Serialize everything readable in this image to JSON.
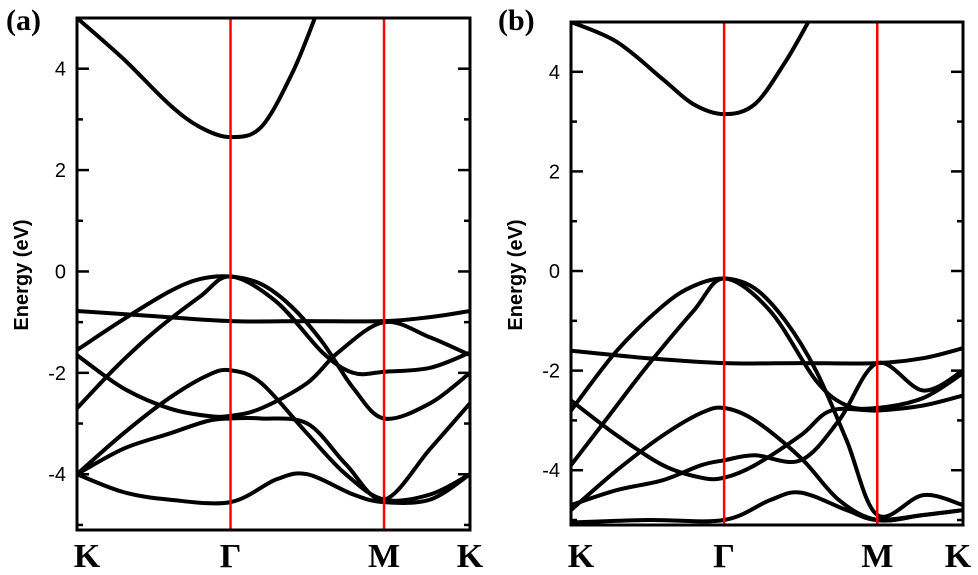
{
  "chart_data": [
    {
      "type": "line",
      "panel_label": "(a)",
      "ylabel": "Energy (eV)",
      "ylim": [
        -5.1,
        5.0
      ],
      "yticks": [
        4,
        2,
        0,
        -2,
        -4
      ],
      "ytick_labels": [
        "4",
        "2",
        "0",
        "-2",
        "-4"
      ],
      "kpoint_labels": [
        "K",
        "Γ",
        "M",
        "K"
      ],
      "kpoint_x": [
        0,
        1,
        2,
        2.56
      ],
      "vertical_line_color": "#ff0000",
      "band_color": "#000000",
      "bands": [
        {
          "x": [
            0,
            0.3,
            0.6,
            0.8,
            1.0,
            1.2,
            1.4,
            1.55
          ],
          "y": [
            5.0,
            4.2,
            3.3,
            2.85,
            2.65,
            2.85,
            3.9,
            5.0
          ]
        },
        {
          "x": [
            0,
            0.5,
            1.0,
            1.5,
            2.0,
            2.3,
            2.56
          ],
          "y": [
            -0.78,
            -0.88,
            -0.98,
            -0.98,
            -0.98,
            -0.9,
            -0.78
          ]
        },
        {
          "x": [
            0,
            0.3,
            0.6,
            0.8,
            1.0,
            1.2,
            1.4,
            1.6,
            1.8,
            2.0,
            2.3,
            2.56
          ],
          "y": [
            -1.55,
            -0.95,
            -0.4,
            -0.15,
            -0.1,
            -0.25,
            -0.7,
            -1.4,
            -2.3,
            -2.9,
            -2.6,
            -2.0
          ]
        },
        {
          "x": [
            0,
            0.25,
            0.5,
            0.8,
            1.0,
            1.3,
            1.6,
            1.8,
            2.0,
            2.3,
            2.56
          ],
          "y": [
            -2.7,
            -1.9,
            -1.2,
            -0.5,
            -0.1,
            -0.6,
            -1.6,
            -2.0,
            -1.98,
            -1.9,
            -1.6
          ]
        },
        {
          "x": [
            0,
            0.3,
            0.6,
            0.85,
            1.0,
            1.2,
            1.5,
            1.7,
            2.0,
            2.3,
            2.56
          ],
          "y": [
            -1.65,
            -2.3,
            -2.7,
            -2.85,
            -2.85,
            -2.7,
            -2.2,
            -1.6,
            -1.0,
            -1.3,
            -1.65
          ]
        },
        {
          "x": [
            0,
            0.3,
            0.6,
            0.85,
            1.0,
            1.2,
            1.5,
            1.75,
            2.0,
            2.3,
            2.56
          ],
          "y": [
            -4.0,
            -3.2,
            -2.5,
            -2.05,
            -1.95,
            -2.2,
            -3.2,
            -4.0,
            -4.5,
            -4.4,
            -4.0
          ]
        },
        {
          "x": [
            0,
            0.3,
            0.6,
            1.0,
            1.3,
            1.5,
            1.8,
            2.0,
            2.3,
            2.56
          ],
          "y": [
            -4.0,
            -4.35,
            -4.5,
            -4.55,
            -4.1,
            -4.0,
            -4.4,
            -4.55,
            -4.5,
            -4.0
          ]
        },
        {
          "x": [
            0,
            0.3,
            0.6,
            0.85,
            1.0,
            1.2,
            1.5,
            1.75,
            2.0,
            2.3,
            2.56
          ],
          "y": [
            -4.0,
            -3.5,
            -3.2,
            -2.95,
            -2.9,
            -2.9,
            -3.0,
            -3.8,
            -4.5,
            -3.5,
            -2.6
          ]
        }
      ]
    },
    {
      "type": "line",
      "panel_label": "(b)",
      "ylabel": "Energy (eV)",
      "ylim": [
        -5.1,
        5.0
      ],
      "yticks": [
        4,
        2,
        0,
        -2,
        -4
      ],
      "ytick_labels": [
        "4",
        "2",
        "0",
        "-2",
        "-4"
      ],
      "kpoint_labels": [
        "K",
        "Γ",
        "M",
        "K"
      ],
      "kpoint_x": [
        0,
        1,
        2,
        2.56
      ],
      "vertical_line_color": "#ff0000",
      "band_color": "#000000",
      "bands": [
        {
          "x": [
            0,
            0.3,
            0.6,
            0.8,
            1.0,
            1.2,
            1.4,
            1.55
          ],
          "y": [
            5.0,
            4.6,
            3.85,
            3.35,
            3.15,
            3.35,
            4.2,
            5.0
          ]
        },
        {
          "x": [
            0,
            0.5,
            1.0,
            1.5,
            2.0,
            2.3,
            2.56
          ],
          "y": [
            -1.6,
            -1.75,
            -1.85,
            -1.85,
            -1.85,
            -1.75,
            -1.55
          ]
        },
        {
          "x": [
            0,
            0.3,
            0.6,
            0.8,
            1.0,
            1.2,
            1.4,
            1.6,
            1.8,
            2.0,
            2.3,
            2.56
          ],
          "y": [
            -2.8,
            -1.6,
            -0.7,
            -0.3,
            -0.15,
            -0.35,
            -1.0,
            -2.0,
            -3.4,
            -4.9,
            -4.5,
            -4.7
          ]
        },
        {
          "x": [
            0,
            0.25,
            0.5,
            0.8,
            1.0,
            1.3,
            1.6,
            1.8,
            2.0,
            2.3,
            2.56
          ],
          "y": [
            -3.9,
            -2.9,
            -1.9,
            -0.8,
            -0.15,
            -0.8,
            -2.2,
            -2.7,
            -2.75,
            -2.55,
            -2.05
          ]
        },
        {
          "x": [
            0,
            0.3,
            0.6,
            0.85,
            1.0,
            1.2,
            1.5,
            1.7,
            2.0,
            2.3,
            2.56
          ],
          "y": [
            -2.6,
            -3.3,
            -3.9,
            -4.15,
            -4.15,
            -3.9,
            -3.3,
            -2.8,
            -2.8,
            -2.7,
            -2.5
          ]
        },
        {
          "x": [
            0,
            0.3,
            0.6,
            0.85,
            1.0,
            1.2,
            1.5,
            1.75,
            2.0,
            2.3,
            2.56
          ],
          "y": [
            -4.8,
            -4.0,
            -3.3,
            -2.85,
            -2.75,
            -3.0,
            -3.75,
            -4.6,
            -5.0,
            -4.9,
            -4.8
          ]
        },
        {
          "x": [
            0,
            0.5,
            1.0,
            1.3,
            1.5,
            1.8,
            2.0,
            2.3,
            2.56
          ],
          "y": [
            -5.05,
            -5.0,
            -5.0,
            -4.6,
            -4.45,
            -4.8,
            -5.0,
            -4.9,
            -4.8
          ]
        },
        {
          "x": [
            0,
            0.3,
            0.6,
            0.85,
            1.0,
            1.2,
            1.5,
            1.75,
            2.0,
            2.3,
            2.56
          ],
          "y": [
            -4.7,
            -4.4,
            -4.2,
            -3.9,
            -3.8,
            -3.7,
            -3.8,
            -3.0,
            -1.85,
            -2.4,
            -2.0
          ]
        }
      ]
    }
  ]
}
